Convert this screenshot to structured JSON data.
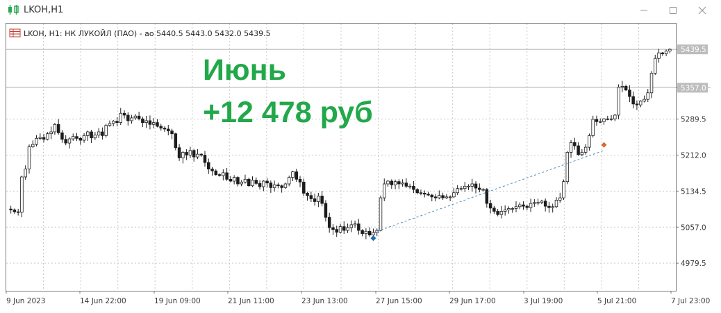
{
  "window": {
    "title": "LKOH,H1",
    "controls": [
      "minimize",
      "maximize",
      "close"
    ]
  },
  "chart_header": {
    "text": "LKOH, H1:  НК ЛУКОЙЛ (ПАО) - ао  5440.5 5443.0 5432.0 5439.5"
  },
  "overlay": {
    "line1": "Июнь",
    "line2": "+12 478 руб",
    "color": "#22a84a"
  },
  "chart_data": {
    "type": "candlestick",
    "symbol": "LKOH",
    "timeframe": "H1",
    "ylim": [
      4920,
      5495
    ],
    "y_ticks": [
      "5439.5",
      "5357.0",
      "5289.5",
      "5212.0",
      "5134.5",
      "5057.0",
      "4979.5"
    ],
    "x_ticks": [
      "9 Jun 2023",
      "14 Jun 22:00",
      "19 Jun 09:00",
      "21 Jun 11:00",
      "23 Jun 13:00",
      "27 Jun 15:00",
      "29 Jun 17:00",
      "3 Jul 19:00",
      "5 Jul 21:00",
      "7 Jul 23:00"
    ],
    "current_price": "5439.5",
    "level_line": "5358.0",
    "close_prices": [
      5094,
      5090,
      5089,
      5165,
      5182,
      5230,
      5235,
      5248,
      5250,
      5246,
      5258,
      5262,
      5278,
      5260,
      5246,
      5238,
      5247,
      5252,
      5248,
      5244,
      5254,
      5262,
      5249,
      5255,
      5262,
      5254,
      5276,
      5280,
      5285,
      5282,
      5302,
      5298,
      5286,
      5292,
      5296,
      5290,
      5282,
      5286,
      5278,
      5282,
      5274,
      5270,
      5268,
      5264,
      5258,
      5228,
      5206,
      5218,
      5212,
      5222,
      5208,
      5214,
      5212,
      5196,
      5182,
      5178,
      5170,
      5168,
      5174,
      5160,
      5156,
      5164,
      5150,
      5154,
      5160,
      5146,
      5158,
      5151,
      5144,
      5156,
      5152,
      5142,
      5148,
      5146,
      5142,
      5150,
      5164,
      5176,
      5160,
      5154,
      5130,
      5125,
      5118,
      5112,
      5124,
      5108,
      5078,
      5056,
      5052,
      5046,
      5058,
      5050,
      5056,
      5062,
      5064,
      5050,
      5043,
      5048,
      5040,
      5045,
      5050,
      5120,
      5150,
      5156,
      5148,
      5155,
      5150,
      5152,
      5145,
      5145,
      5138,
      5131,
      5130,
      5128,
      5126,
      5122,
      5120,
      5125,
      5120,
      5122,
      5122,
      5131,
      5140,
      5140,
      5145,
      5145,
      5150,
      5141,
      5138,
      5138,
      5108,
      5098,
      5091,
      5084,
      5091,
      5094,
      5097,
      5097,
      5101,
      5105,
      5102,
      5099,
      5108,
      5110,
      5110,
      5113,
      5102,
      5099,
      5101,
      5115,
      5120,
      5155,
      5218,
      5239,
      5232,
      5213,
      5218,
      5229,
      5254,
      5289,
      5284,
      5284,
      5290,
      5289,
      5290,
      5298,
      5358,
      5360,
      5352,
      5338,
      5322,
      5320,
      5328,
      5332,
      5346,
      5388,
      5420,
      5432,
      5430,
      5436,
      5439.5
    ],
    "trade_buy_price": 5045,
    "trade_sell_price": 5222
  },
  "colors": {
    "candle": "#1c1c1c",
    "grid": "#c8c8c8",
    "axis_text": "#3a3a3a",
    "trade_line": "#4a8cc0",
    "buy_marker": "#1a6fa8",
    "sell_marker": "#d96a2b",
    "price_tag": "#bdbdbd"
  }
}
